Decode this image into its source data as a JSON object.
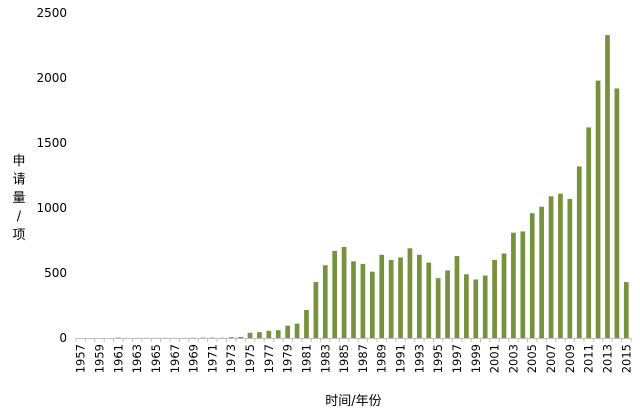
{
  "chart_data": {
    "type": "bar",
    "xlabel": "时间/年份",
    "ylabel": "申请量/项",
    "ylim": [
      0,
      2500
    ],
    "yticks": [
      0,
      500,
      1000,
      1500,
      2000,
      2500
    ],
    "grid": false,
    "legend": "none",
    "bar_color": "#76923c",
    "categories": [
      "1957",
      "1958",
      "1959",
      "1960",
      "1961",
      "1962",
      "1963",
      "1964",
      "1965",
      "1966",
      "1967",
      "1968",
      "1969",
      "1970",
      "1971",
      "1972",
      "1973",
      "1974",
      "1975",
      "1976",
      "1977",
      "1978",
      "1979",
      "1980",
      "1981",
      "1982",
      "1983",
      "1984",
      "1985",
      "1986",
      "1987",
      "1988",
      "1989",
      "1990",
      "1991",
      "1992",
      "1993",
      "1994",
      "1995",
      "1996",
      "1997",
      "1998",
      "1999",
      "2000",
      "2001",
      "2002",
      "2003",
      "2004",
      "2005",
      "2006",
      "2007",
      "2008",
      "2009",
      "2010",
      "2011",
      "2012",
      "2013",
      "2014",
      "2015"
    ],
    "xtick_labels": [
      "1957",
      "1959",
      "1961",
      "1963",
      "1965",
      "1967",
      "1969",
      "1971",
      "1973",
      "1975",
      "1977",
      "1979",
      "1981",
      "1983",
      "1985",
      "1987",
      "1989",
      "1991",
      "1993",
      "1995",
      "1997",
      "1999",
      "2001",
      "2003",
      "2005",
      "2007",
      "2009",
      "2011",
      "2013",
      "2015"
    ],
    "values": [
      0,
      0,
      0,
      0,
      3,
      1,
      1,
      1,
      1,
      1,
      1,
      1,
      2,
      3,
      3,
      2,
      6,
      8,
      40,
      45,
      55,
      60,
      95,
      110,
      215,
      430,
      560,
      670,
      700,
      590,
      570,
      510,
      640,
      600,
      620,
      690,
      640,
      580,
      460,
      520,
      630,
      490,
      450,
      480,
      600,
      650,
      810,
      820,
      960,
      1010,
      1090,
      1110,
      1070,
      1320,
      1620,
      1980,
      2330,
      1920,
      430
    ]
  }
}
